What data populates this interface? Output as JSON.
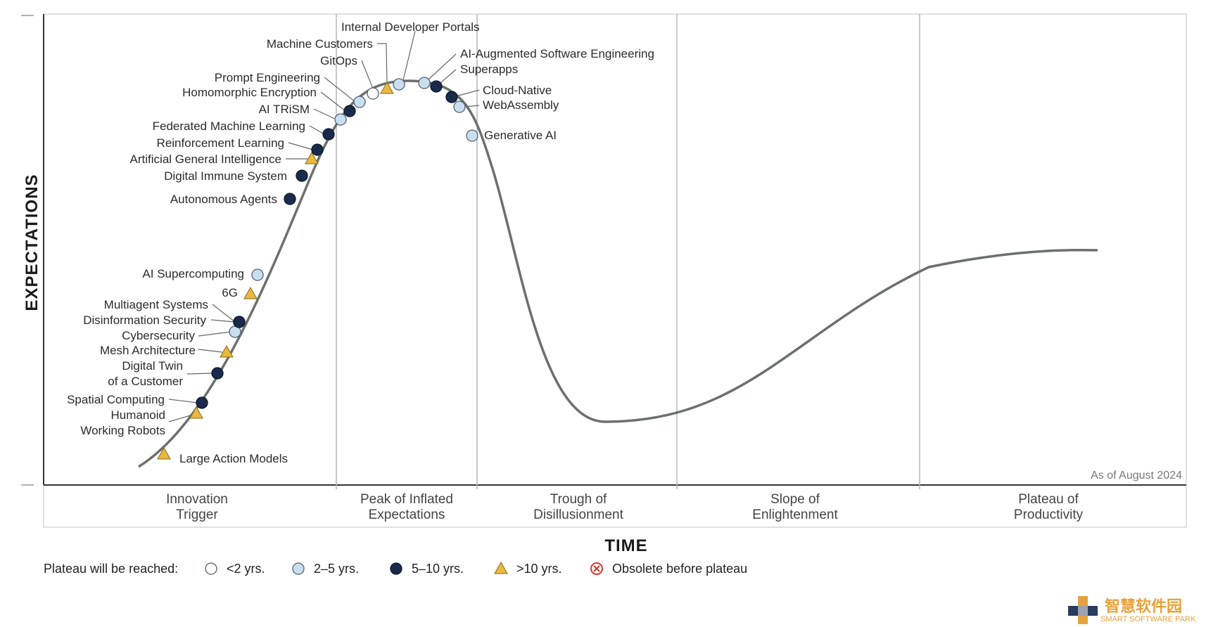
{
  "chart_data": {
    "type": "hype-cycle",
    "xlabel": "TIME",
    "ylabel": "EXPECTATIONS",
    "as_of": "As of August 2024",
    "phases": [
      {
        "lines": [
          "Innovation",
          "Trigger"
        ]
      },
      {
        "lines": [
          "Peak of Inflated",
          "Expectations"
        ]
      },
      {
        "lines": [
          "Trough of",
          "Disillusionment"
        ]
      },
      {
        "lines": [
          "Slope of",
          "Enlightenment"
        ]
      },
      {
        "lines": [
          "Plateau of",
          "Productivity"
        ]
      }
    ],
    "legend": {
      "title": "Plateau will be reached:",
      "items": [
        {
          "label": "<2 yrs.",
          "marker": "circle-white"
        },
        {
          "label": "2–5 yrs.",
          "marker": "circle-light"
        },
        {
          "label": "5–10 yrs.",
          "marker": "circle-dark"
        },
        {
          "label": ">10 yrs.",
          "marker": "triangle"
        },
        {
          "label": "Obsolete before plateau",
          "marker": "obsolete-x"
        }
      ]
    },
    "technologies": [
      {
        "name": "Large Action Models",
        "lines": [
          "Large Action Models"
        ],
        "plateau": ">10 yrs.",
        "marker": "triangle"
      },
      {
        "name": "Humanoid Working Robots",
        "lines": [
          "Humanoid",
          "Working Robots"
        ],
        "plateau": ">10 yrs.",
        "marker": "triangle"
      },
      {
        "name": "Spatial Computing",
        "lines": [
          "Spatial Computing"
        ],
        "plateau": "5–10 yrs.",
        "marker": "circle-dark"
      },
      {
        "name": "Digital Twin of a Customer",
        "lines": [
          "Digital Twin",
          "of a Customer"
        ],
        "plateau": "5–10 yrs.",
        "marker": "circle-dark"
      },
      {
        "name": "Mesh Architecture",
        "lines": [
          "Mesh Architecture"
        ],
        "plateau": ">10 yrs.",
        "marker": "triangle"
      },
      {
        "name": "Cybersecurity",
        "lines": [
          "Cybersecurity"
        ],
        "plateau": "2–5 yrs.",
        "marker": "circle-light"
      },
      {
        "name": "Disinformation Security",
        "lines": [
          "Disinformation Security"
        ],
        "plateau": "5–10 yrs.",
        "marker": "circle-dark"
      },
      {
        "name": "Multiagent Systems",
        "lines": [
          "Multiagent Systems"
        ],
        "plateau": "5–10 yrs.",
        "marker": "circle-dark"
      },
      {
        "name": "6G",
        "lines": [
          "6G"
        ],
        "plateau": ">10 yrs.",
        "marker": "triangle"
      },
      {
        "name": "AI Supercomputing",
        "lines": [
          "AI Supercomputing"
        ],
        "plateau": "2–5 yrs.",
        "marker": "circle-light"
      },
      {
        "name": "Autonomous Agents",
        "lines": [
          "Autonomous Agents"
        ],
        "plateau": "5–10 yrs.",
        "marker": "circle-dark"
      },
      {
        "name": "Digital Immune System",
        "lines": [
          "Digital Immune System"
        ],
        "plateau": "5–10 yrs.",
        "marker": "circle-dark"
      },
      {
        "name": "Artificial General Intelligence",
        "lines": [
          "Artificial General Intelligence"
        ],
        "plateau": ">10 yrs.",
        "marker": "triangle"
      },
      {
        "name": "Reinforcement Learning",
        "lines": [
          "Reinforcement Learning"
        ],
        "plateau": "5–10 yrs.",
        "marker": "circle-dark"
      },
      {
        "name": "Federated Machine Learning",
        "lines": [
          "Federated Machine Learning"
        ],
        "plateau": "5–10 yrs.",
        "marker": "circle-dark"
      },
      {
        "name": "AI TRiSM",
        "lines": [
          "AI TRiSM"
        ],
        "plateau": "2–5 yrs.",
        "marker": "circle-light"
      },
      {
        "name": "Homomorphic Encryption",
        "lines": [
          "Homomorphic Encryption"
        ],
        "plateau": "5–10 yrs.",
        "marker": "circle-dark"
      },
      {
        "name": "Prompt Engineering",
        "lines": [
          "Prompt Engineering"
        ],
        "plateau": "2–5 yrs.",
        "marker": "circle-light"
      },
      {
        "name": "GitOps",
        "lines": [
          "GitOps"
        ],
        "plateau": "<2 yrs.",
        "marker": "circle-white"
      },
      {
        "name": "Machine Customers",
        "lines": [
          "Machine Customers"
        ],
        "plateau": ">10 yrs.",
        "marker": "triangle"
      },
      {
        "name": "Internal Developer Portals",
        "lines": [
          "Internal Developer Portals"
        ],
        "plateau": "2–5 yrs.",
        "marker": "circle-light"
      },
      {
        "name": "AI-Augmented Software Engineering",
        "lines": [
          "AI-Augmented Software Engineering"
        ],
        "plateau": "2–5 yrs.",
        "marker": "circle-light"
      },
      {
        "name": "Superapps",
        "lines": [
          "Superapps"
        ],
        "plateau": "5–10 yrs.",
        "marker": "circle-dark"
      },
      {
        "name": "Cloud-Native",
        "lines": [
          "Cloud-Native"
        ],
        "plateau": "5–10 yrs.",
        "marker": "circle-dark"
      },
      {
        "name": "WebAssembly",
        "lines": [
          "WebAssembly"
        ],
        "plateau": "2–5 yrs.",
        "marker": "circle-light"
      },
      {
        "name": "Generative AI",
        "lines": [
          "Generative AI"
        ],
        "plateau": "2–5 yrs.",
        "marker": "circle-light"
      }
    ]
  },
  "colors": {
    "curve": "#6b706c",
    "frame": "#333333",
    "divider": "#b5b5b5",
    "dark": "#1a2a4a",
    "light": "#c9dff0",
    "white": "#ffffff",
    "triangle": "#e8b840",
    "obsolete": "#d9342b"
  },
  "watermark": {
    "cn": "智慧软件园",
    "en": "SMART SOFTWARE PARK",
    "colors": [
      "#e6a23c",
      "#2b3b5c",
      "#9aa3b0"
    ]
  }
}
